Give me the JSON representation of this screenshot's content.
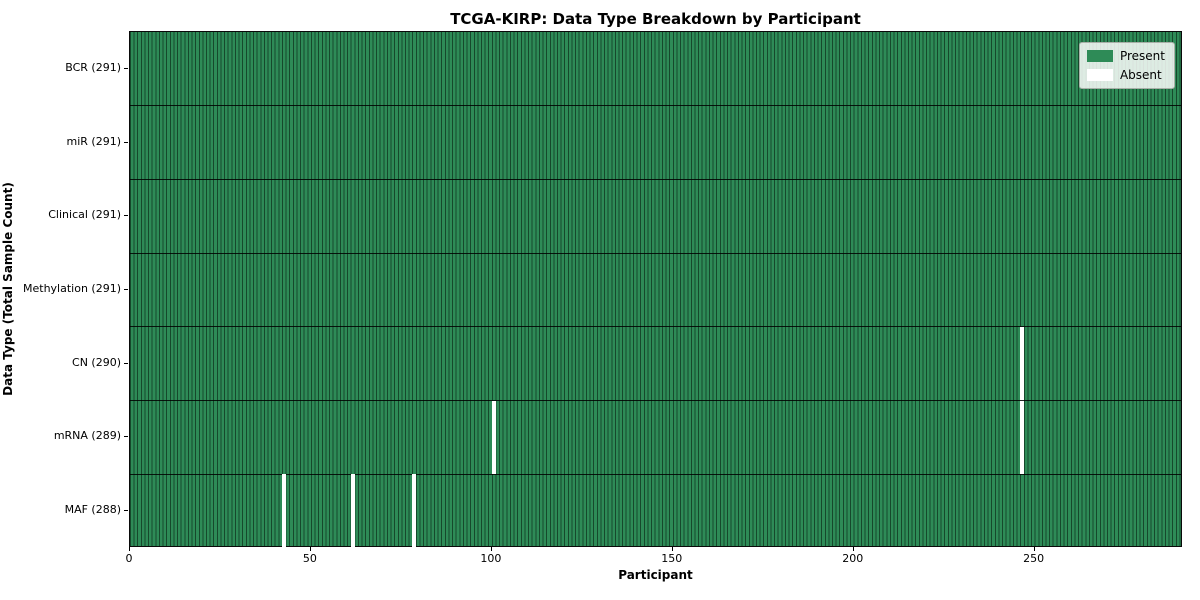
{
  "chart_data": {
    "type": "heatmap",
    "title": "TCGA-KIRP: Data Type Breakdown by Participant",
    "xlabel": "Participant",
    "ylabel": "Data Type (Total Sample Count)",
    "n_participants": 291,
    "x_ticks": [
      0,
      50,
      100,
      150,
      200,
      250
    ],
    "x_range": [
      0,
      291
    ],
    "grid": false,
    "legend_position": "upper right",
    "rows": [
      {
        "data_type": "BCR",
        "label": "BCR (291)",
        "present_count": 291,
        "absent_participants": []
      },
      {
        "data_type": "miR",
        "label": "miR (291)",
        "present_count": 291,
        "absent_participants": []
      },
      {
        "data_type": "Clinical",
        "label": "Clinical (291)",
        "present_count": 291,
        "absent_participants": []
      },
      {
        "data_type": "Methylation",
        "label": "Methylation (291)",
        "present_count": 291,
        "absent_participants": []
      },
      {
        "data_type": "CN",
        "label": "CN (290)",
        "present_count": 290,
        "absent_participants": [
          246
        ]
      },
      {
        "data_type": "mRNA",
        "label": "mRNA (289)",
        "present_count": 289,
        "absent_participants": [
          100,
          246
        ]
      },
      {
        "data_type": "MAF",
        "label": "MAF (288)",
        "present_count": 288,
        "absent_participants": [
          42,
          61,
          78
        ]
      }
    ],
    "legend": [
      {
        "label": "Present",
        "color": "#2e8b57"
      },
      {
        "label": "Absent",
        "color": "#ffffff"
      }
    ],
    "colors": {
      "present": "#2e8b57",
      "absent": "#ffffff",
      "cell_edge": "rgba(8, 32, 18, 0.62)",
      "row_separator": "rgba(0, 0, 0, 0.85)",
      "legend_border": "#a8b0a8"
    }
  }
}
